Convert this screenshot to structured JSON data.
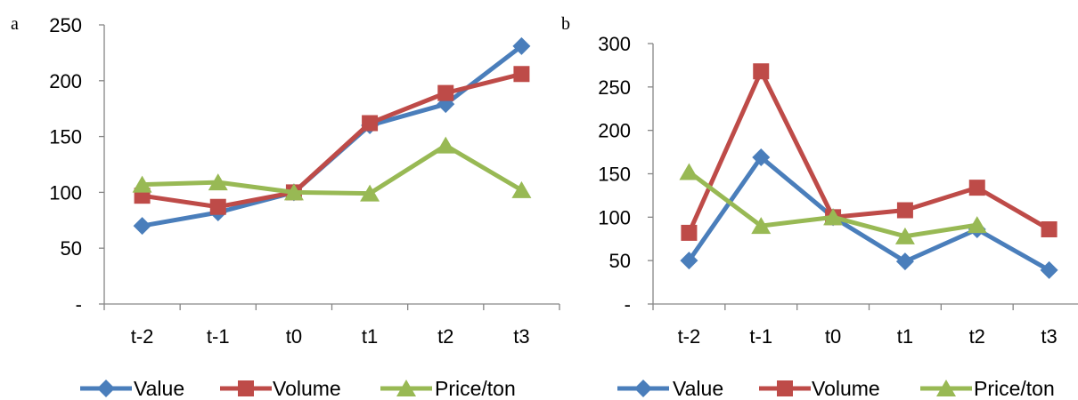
{
  "chart_data": [
    {
      "type": "line",
      "panel_label": "a",
      "categories": [
        "t-2",
        "t-1",
        "t0",
        "t1",
        "t2",
        "t3"
      ],
      "y_ticks": [
        "-",
        "50",
        "100",
        "150",
        "200",
        "250"
      ],
      "ylim": [
        0,
        250
      ],
      "grid": false,
      "legend_position": "bottom",
      "series": [
        {
          "name": "Value",
          "color": "#4A7EBB",
          "marker": "diamond",
          "values": [
            70,
            82,
            100,
            160,
            179,
            231
          ]
        },
        {
          "name": "Volume",
          "color": "#BE4B48",
          "marker": "square",
          "values": [
            97,
            87,
            100,
            162,
            189,
            206
          ]
        },
        {
          "name": "Price/ton",
          "color": "#98B954",
          "marker": "triangle",
          "values": [
            107,
            109,
            100,
            99,
            142,
            102
          ]
        }
      ]
    },
    {
      "type": "line",
      "panel_label": "b",
      "categories": [
        "t-2",
        "t-1",
        "t0",
        "t1",
        "t2",
        "t3"
      ],
      "y_ticks": [
        "-",
        "50",
        "100",
        "150",
        "200",
        "250",
        "300"
      ],
      "ylim": [
        0,
        300
      ],
      "grid": false,
      "legend_position": "bottom",
      "series": [
        {
          "name": "Value",
          "color": "#4A7EBB",
          "marker": "diamond",
          "values": [
            50,
            169,
            100,
            49,
            86,
            39
          ]
        },
        {
          "name": "Volume",
          "color": "#BE4B48",
          "marker": "square",
          "values": [
            82,
            268,
            100,
            108,
            134,
            86
          ]
        },
        {
          "name": "Price/ton",
          "color": "#98B954",
          "marker": "triangle",
          "values": [
            152,
            90,
            100,
            78,
            91,
            null
          ]
        }
      ]
    }
  ]
}
